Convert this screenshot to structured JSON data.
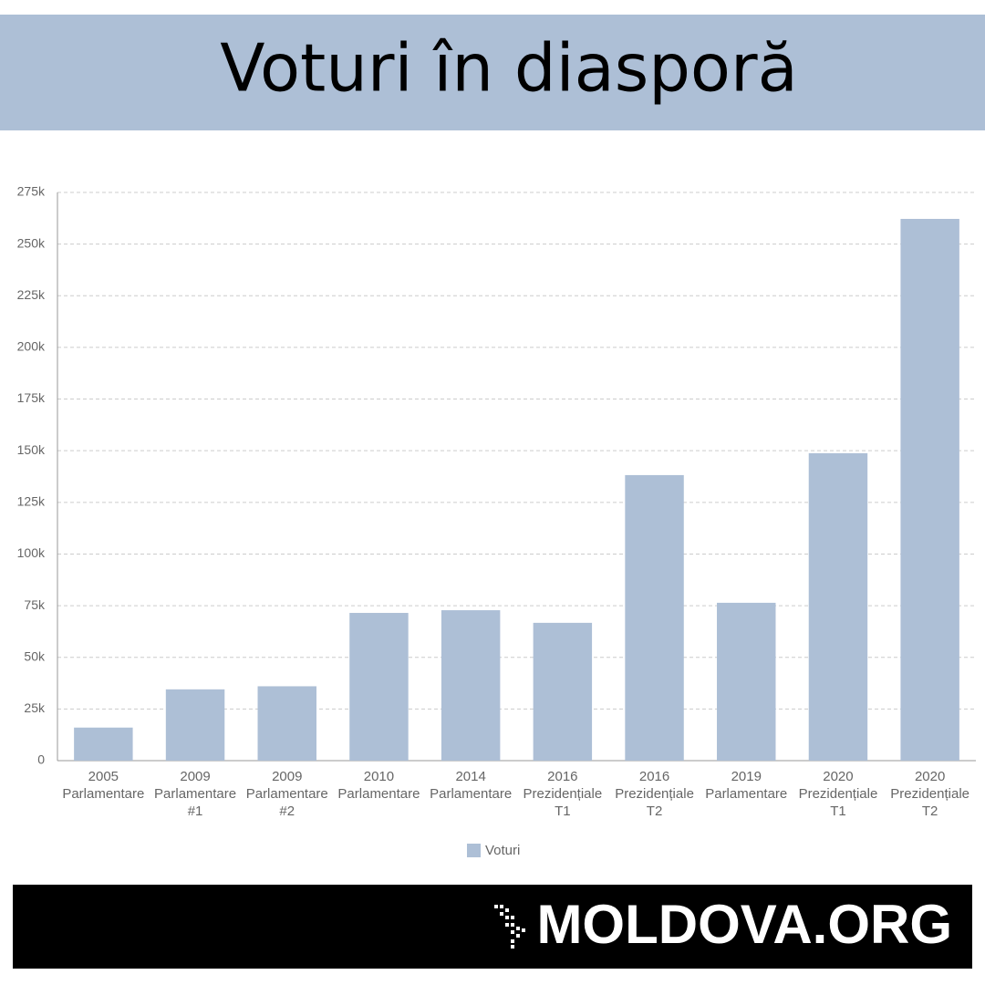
{
  "chart_data": {
    "type": "bar",
    "title": "Voturi în diasporă",
    "categories": [
      [
        "2005",
        "Parlamentare"
      ],
      [
        "2009",
        "Parlamentare",
        "#1"
      ],
      [
        "2009",
        "Parlamentare",
        "#2"
      ],
      [
        "2010",
        "Parlamentare"
      ],
      [
        "2014",
        "Parlamentare"
      ],
      [
        "2016",
        "Prezidențiale",
        "T1"
      ],
      [
        "2016",
        "Prezidențiale",
        "T2"
      ],
      [
        "2019",
        "Parlamentare"
      ],
      [
        "2020",
        "Prezidențiale",
        "T1"
      ],
      [
        "2020",
        "Prezidențiale",
        "T2"
      ]
    ],
    "series": [
      {
        "name": "Voturi",
        "color": "#adbfd6",
        "values": [
          16000,
          34500,
          36000,
          71500,
          72800,
          66700,
          138200,
          76400,
          148800,
          262200
        ]
      }
    ],
    "ylim": [
      0,
      275000
    ],
    "yticks": [
      0,
      {
        "value": 25000,
        "label": "25k"
      },
      {
        "value": 50000,
        "label": "50k"
      },
      {
        "value": 75000,
        "label": "75k"
      },
      {
        "value": 100000,
        "label": "100k"
      },
      {
        "value": 125000,
        "label": "125k"
      },
      {
        "value": 150000,
        "label": "150k"
      },
      {
        "value": 175000,
        "label": "175k"
      },
      {
        "value": 200000,
        "label": "200k"
      },
      {
        "value": 225000,
        "label": "225k"
      },
      {
        "value": 250000,
        "label": "250k"
      },
      {
        "value": 275000,
        "label": "275k"
      }
    ],
    "grid": true,
    "legend": "bottom"
  },
  "footer": {
    "logo": "MOLDOVA.ORG"
  }
}
